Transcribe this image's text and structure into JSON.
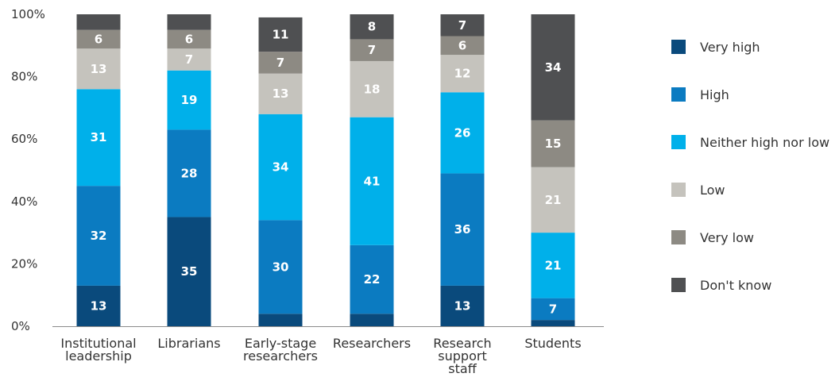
{
  "chart_data": {
    "type": "bar",
    "stacked": true,
    "categories": [
      [
        "Institutional",
        "leadership"
      ],
      [
        "Librarians"
      ],
      [
        "Early-stage",
        "researchers"
      ],
      [
        "Researchers"
      ],
      [
        "Research",
        "support",
        "staff"
      ],
      [
        "Students"
      ]
    ],
    "y_ticks": [
      "0%",
      "20%",
      "40%",
      "60%",
      "80%",
      "100%"
    ],
    "ylim": [
      0,
      100
    ],
    "legend_position": "right",
    "series": [
      {
        "name": "Very high",
        "color": "#0a4a7c",
        "text_color": "#ffffff",
        "values": [
          13,
          35,
          4,
          4,
          13,
          2
        ],
        "labels": [
          "13",
          "35",
          "",
          "",
          "13",
          ""
        ]
      },
      {
        "name": "High",
        "color": "#0b7bc1",
        "text_color": "#ffffff",
        "values": [
          32,
          28,
          30,
          22,
          36,
          7
        ],
        "labels": [
          "32",
          "28",
          "30",
          "22",
          "36",
          "7"
        ]
      },
      {
        "name": "Neither high nor low",
        "color": "#00b0ea",
        "text_color": "#ffffff",
        "values": [
          31,
          19,
          34,
          41,
          26,
          21
        ],
        "labels": [
          "31",
          "19",
          "34",
          "41",
          "26",
          "21"
        ]
      },
      {
        "name": "Low",
        "color": "#c5c3bd",
        "text_color": "#ffffff",
        "values": [
          13,
          7,
          13,
          18,
          12,
          21
        ],
        "labels": [
          "13",
          "7",
          "13",
          "18",
          "12",
          "21"
        ]
      },
      {
        "name": "Very low",
        "color": "#8d8a83",
        "text_color": "#ffffff",
        "values": [
          6,
          6,
          7,
          7,
          6,
          15
        ],
        "labels": [
          "6",
          "6",
          "7",
          "7",
          "6",
          "15"
        ]
      },
      {
        "name": "Don't know",
        "color": "#4f5052",
        "text_color": "#ffffff",
        "values": [
          5,
          5,
          11,
          8,
          7,
          34
        ],
        "labels": [
          "",
          "",
          "11",
          "8",
          "7",
          "34"
        ]
      }
    ]
  }
}
